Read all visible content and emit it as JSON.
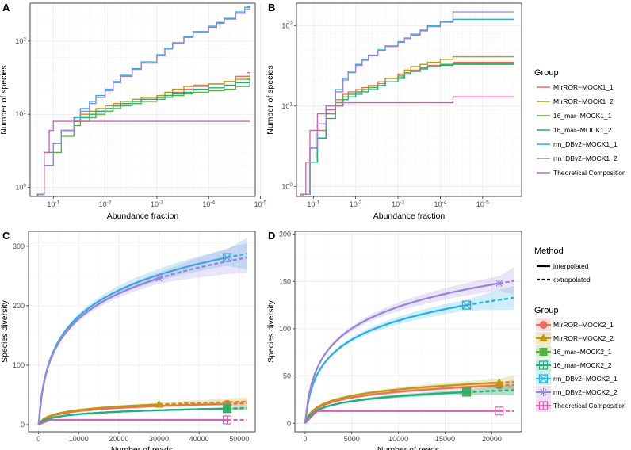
{
  "chart_data": [
    {
      "type": "line",
      "panel": "A",
      "xlabel": "Abundance fraction",
      "ylabel": "Number of species",
      "x_scale": "log10-reversed",
      "y_scale": "log10",
      "xlim": [
        0.28,
        1.26e-05
      ],
      "ylim": [
        0.75,
        330
      ],
      "x_ticks": [
        {
          "v": 0.1,
          "base": "10",
          "exp": "-1"
        },
        {
          "v": 0.01,
          "base": "10",
          "exp": "-2"
        },
        {
          "v": 0.001,
          "base": "10",
          "exp": "-3"
        },
        {
          "v": 0.0001,
          "base": "10",
          "exp": "-4"
        },
        {
          "v": 1e-05,
          "base": "10",
          "exp": "-5"
        }
      ],
      "y_ticks": [
        {
          "v": 1,
          "base": "10",
          "exp": "0"
        },
        {
          "v": 10,
          "base": "10",
          "exp": "1"
        },
        {
          "v": 100,
          "base": "10",
          "exp": "2"
        }
      ],
      "series": [
        {
          "name": "MIrROR−MOCK1_1",
          "x": [
            0.2,
            0.15,
            0.1,
            0.07,
            0.04,
            0.03,
            0.02,
            0.015,
            0.01,
            0.007,
            0.005,
            0.003,
            0.002,
            0.001,
            0.0007,
            0.0005,
            0.0003,
            0.0002,
            0.0001,
            5e-05,
            3e-05,
            1.6e-05
          ],
          "y": [
            0.8,
            2,
            4,
            6,
            8,
            9,
            10,
            11,
            12,
            13,
            14,
            15,
            16,
            17,
            18,
            20,
            22,
            24,
            26,
            28,
            33,
            37
          ]
        },
        {
          "name": "MIrROR−MOCK1_2",
          "x": [
            0.2,
            0.15,
            0.1,
            0.07,
            0.04,
            0.03,
            0.02,
            0.015,
            0.01,
            0.007,
            0.005,
            0.003,
            0.002,
            0.001,
            0.0007,
            0.0005,
            0.0003,
            0.0002,
            0.0001,
            5e-05,
            3e-05,
            1.6e-05
          ],
          "y": [
            0.8,
            2,
            4,
            6,
            8,
            10,
            11,
            12,
            13,
            14,
            15,
            16,
            17,
            18,
            20,
            22,
            24,
            25,
            26,
            28,
            30,
            33
          ]
        },
        {
          "name": "16_mar−MOCK1_1",
          "x": [
            0.2,
            0.15,
            0.1,
            0.07,
            0.04,
            0.03,
            0.02,
            0.015,
            0.01,
            0.007,
            0.005,
            0.003,
            0.002,
            0.001,
            0.0007,
            0.0005,
            0.0003,
            0.0002,
            0.0001,
            5e-05,
            3e-05,
            1.6e-05
          ],
          "y": [
            0.8,
            2,
            3,
            5,
            7,
            8,
            9,
            10,
            11,
            12,
            13,
            14,
            15,
            16,
            17,
            18,
            19,
            20,
            21,
            22,
            24,
            27
          ]
        },
        {
          "name": "16_mar−MOCK1_2",
          "x": [
            0.2,
            0.15,
            0.1,
            0.07,
            0.04,
            0.03,
            0.02,
            0.015,
            0.01,
            0.007,
            0.005,
            0.003,
            0.002,
            0.001,
            0.0007,
            0.0005,
            0.0003,
            0.0002,
            0.0001,
            5e-05,
            3e-05,
            1.6e-05
          ],
          "y": [
            0.8,
            3,
            4,
            6,
            8,
            9,
            10,
            11,
            12,
            13,
            14,
            15,
            16,
            17,
            18,
            19,
            20,
            22,
            23,
            25,
            27,
            30
          ]
        },
        {
          "name": "rrn_DBv2−MOCK1_1",
          "x": [
            0.2,
            0.15,
            0.1,
            0.07,
            0.04,
            0.03,
            0.02,
            0.015,
            0.01,
            0.007,
            0.005,
            0.003,
            0.002,
            0.001,
            0.0007,
            0.0005,
            0.0003,
            0.0002,
            0.0001,
            7e-05,
            5e-05,
            3e-05,
            2e-05,
            1.6e-05
          ],
          "y": [
            0.8,
            2,
            4,
            6,
            9,
            12,
            15,
            18,
            22,
            28,
            34,
            42,
            52,
            65,
            80,
            95,
            115,
            135,
            160,
            180,
            205,
            250,
            290,
            300
          ]
        },
        {
          "name": "rrn_DBv2−MOCK1_2",
          "x": [
            0.2,
            0.15,
            0.1,
            0.07,
            0.04,
            0.03,
            0.02,
            0.015,
            0.01,
            0.007,
            0.005,
            0.003,
            0.002,
            0.001,
            0.0007,
            0.0005,
            0.0003,
            0.0002,
            0.0001,
            7e-05,
            5e-05,
            3e-05,
            2e-05,
            1.6e-05
          ],
          "y": [
            0.8,
            2,
            4,
            6,
            8,
            11,
            14,
            17,
            21,
            27,
            33,
            41,
            50,
            63,
            78,
            93,
            112,
            130,
            155,
            175,
            200,
            240,
            270,
            275
          ]
        },
        {
          "name": "Theoretical Composition",
          "x": [
            0.2,
            0.15,
            0.12,
            0.1,
            1.6e-05
          ],
          "y": [
            0.8,
            3,
            6,
            8,
            8
          ]
        }
      ]
    },
    {
      "type": "line",
      "panel": "B",
      "xlabel": "Abundance fraction",
      "ylabel": "Number of species",
      "x_scale": "log10-reversed",
      "y_scale": "log10",
      "xlim": [
        0.25,
        1.2e-06
      ],
      "ylim": [
        0.75,
        190
      ],
      "x_ticks": [
        {
          "v": 0.1,
          "base": "10",
          "exp": "-1"
        },
        {
          "v": 0.01,
          "base": "10",
          "exp": "-2"
        },
        {
          "v": 0.001,
          "base": "10",
          "exp": "-3"
        },
        {
          "v": 0.0001,
          "base": "10",
          "exp": "-4"
        },
        {
          "v": 1e-05,
          "base": "10",
          "exp": "-5"
        }
      ],
      "y_ticks": [
        {
          "v": 1,
          "base": "10",
          "exp": "0"
        },
        {
          "v": 10,
          "base": "10",
          "exp": "1"
        },
        {
          "v": 100,
          "base": "10",
          "exp": "2"
        }
      ],
      "series": [
        {
          "name": "MIrROR−MOCK2_1",
          "x": [
            0.18,
            0.12,
            0.08,
            0.05,
            0.03,
            0.02,
            0.015,
            0.01,
            0.007,
            0.005,
            0.003,
            0.002,
            0.001,
            0.0007,
            0.0005,
            0.0003,
            0.0002,
            0.0001,
            5e-05,
            2e-06
          ],
          "y": [
            0.8,
            2,
            5,
            9,
            12,
            14,
            15,
            16,
            17,
            18,
            20,
            22,
            24,
            26,
            28,
            30,
            32,
            33,
            35,
            35
          ]
        },
        {
          "name": "MIrROR−MOCK2_2",
          "x": [
            0.18,
            0.12,
            0.08,
            0.05,
            0.03,
            0.02,
            0.015,
            0.01,
            0.007,
            0.005,
            0.003,
            0.002,
            0.001,
            0.0007,
            0.0005,
            0.0003,
            0.0002,
            0.0001,
            5e-05,
            2e-06
          ],
          "y": [
            0.8,
            2,
            4,
            8,
            11,
            13,
            14,
            15,
            16,
            17,
            19,
            22,
            25,
            28,
            31,
            33,
            35,
            38,
            41,
            41
          ]
        },
        {
          "name": "16_mar−MOCK2_1",
          "x": [
            0.18,
            0.12,
            0.08,
            0.05,
            0.03,
            0.02,
            0.015,
            0.01,
            0.007,
            0.005,
            0.003,
            0.002,
            0.001,
            0.0007,
            0.0005,
            0.0003,
            0.0002,
            0.0001,
            5e-05,
            2e-06
          ],
          "y": [
            0.8,
            2,
            4,
            8,
            11,
            13,
            14,
            15,
            16,
            17,
            18,
            20,
            23,
            25,
            27,
            29,
            31,
            33,
            34,
            34
          ]
        },
        {
          "name": "16_mar−MOCK2_2",
          "x": [
            0.18,
            0.12,
            0.08,
            0.05,
            0.03,
            0.02,
            0.015,
            0.01,
            0.007,
            0.005,
            0.003,
            0.002,
            0.001,
            0.0007,
            0.0005,
            0.0003,
            0.0002,
            0.0001,
            5e-05,
            2e-06
          ],
          "y": [
            0.8,
            2,
            4,
            7,
            10,
            12,
            13,
            14,
            15,
            16,
            18,
            20,
            22,
            25,
            27,
            29,
            31,
            32,
            33,
            33
          ]
        },
        {
          "name": "rrn_DBv2−MOCK2_1",
          "x": [
            0.18,
            0.12,
            0.08,
            0.05,
            0.03,
            0.02,
            0.015,
            0.01,
            0.007,
            0.005,
            0.003,
            0.002,
            0.001,
            0.0007,
            0.0005,
            0.0003,
            0.0002,
            0.0001,
            5e-05,
            2e-06
          ],
          "y": [
            0.8,
            3,
            6,
            10,
            16,
            22,
            27,
            33,
            38,
            43,
            50,
            56,
            63,
            70,
            78,
            88,
            100,
            112,
            120,
            120
          ]
        },
        {
          "name": "rrn_DBv2−MOCK2_2",
          "x": [
            0.18,
            0.12,
            0.08,
            0.05,
            0.03,
            0.02,
            0.015,
            0.01,
            0.007,
            0.005,
            0.003,
            0.002,
            0.001,
            0.0007,
            0.0005,
            0.0003,
            0.0002,
            0.0001,
            5e-05,
            2e-06
          ],
          "y": [
            0.8,
            3,
            6,
            10,
            15,
            21,
            26,
            32,
            37,
            42,
            49,
            55,
            62,
            69,
            76,
            86,
            97,
            110,
            148,
            148
          ]
        },
        {
          "name": "Theoretical Composition",
          "x": [
            0.2,
            0.15,
            0.12,
            0.08,
            0.05,
            0.03,
            0.02,
            0.01,
            0.0001,
            5e-05,
            2e-06
          ],
          "y": [
            0.8,
            2,
            5,
            8,
            9,
            10,
            11,
            11,
            11,
            13,
            13
          ]
        }
      ]
    },
    {
      "type": "line",
      "panel": "C",
      "xlabel": "Number of reads",
      "ylabel": "Species diversity",
      "xlim": [
        -2500,
        54000
      ],
      "ylim": [
        -12,
        325
      ],
      "x_ticks": [
        0,
        10000,
        20000,
        30000,
        40000,
        50000
      ],
      "y_ticks": [
        0,
        100,
        200,
        300
      ],
      "series": [
        {
          "name": "MIrROR−MOCK2_1",
          "x_obs": 47000,
          "y_obs": 35,
          "k": 23,
          "ci": 3
        },
        {
          "name": "MIrROR−MOCK2_2",
          "x_obs": 30000,
          "y_obs": 34,
          "k": 23,
          "ci": 4
        },
        {
          "name": "16_mar−MOCK2_1",
          "x_obs": 47000,
          "y_obs": 27,
          "k": 19,
          "ci": 2
        },
        {
          "name": "16_mar−MOCK2_2",
          "x_obs": 47000,
          "y_obs": 27,
          "k": 19,
          "ci": 2
        },
        {
          "name": "rrn_DBv2−MOCK2_1",
          "x_obs": 47000,
          "y_obs": 281,
          "k": 115,
          "ci": 15
        },
        {
          "name": "rrn_DBv2−MOCK2_2",
          "x_obs": 30000,
          "y_obs": 246,
          "k": 113,
          "ci": 14
        },
        {
          "name": "Theoretical Composition",
          "x_obs": 47000,
          "y_obs": 8,
          "k": 8,
          "ci": 0
        }
      ]
    },
    {
      "type": "line",
      "panel": "D",
      "xlabel": "Number of reads",
      "ylabel": "Species diversity",
      "xlim": [
        -1100,
        23200
      ],
      "ylim": [
        -9,
        203
      ],
      "x_ticks": [
        0,
        5000,
        10000,
        15000,
        20000
      ],
      "y_ticks": [
        0,
        50,
        100,
        150,
        200
      ],
      "series": [
        {
          "name": "MIrROR−MOCK2_1",
          "x_obs": 20800,
          "y_obs": 40,
          "k": 22,
          "ci": 3
        },
        {
          "name": "MIrROR−MOCK2_2",
          "x_obs": 20800,
          "y_obs": 43,
          "k": 23,
          "ci": 4
        },
        {
          "name": "16_mar−MOCK2_1",
          "x_obs": 17300,
          "y_obs": 33,
          "k": 21,
          "ci": 3
        },
        {
          "name": "16_mar−MOCK2_2",
          "x_obs": 17300,
          "y_obs": 33,
          "k": 21,
          "ci": 3
        },
        {
          "name": "rrn_DBv2−MOCK2_1",
          "x_obs": 17300,
          "y_obs": 125,
          "k": 68,
          "ci": 7
        },
        {
          "name": "rrn_DBv2−MOCK2_2",
          "x_obs": 20800,
          "y_obs": 148,
          "k": 70,
          "ci": 8
        },
        {
          "name": "Theoretical Composition",
          "x_obs": 20800,
          "y_obs": 13,
          "k": 10,
          "ci": 0
        }
      ]
    }
  ],
  "legends": {
    "top": {
      "title": "Group",
      "items": [
        "MIrROR−MOCK1_1",
        "MIrROR−MOCK1_2",
        "16_mar−MOCK1_1",
        "16_mar−MOCK1_2",
        "rrn_DBv2−MOCK1_1",
        "rrn_DBv2−MOCK1_2",
        "Theoretical Composition"
      ]
    },
    "method": {
      "title": "Method",
      "items": [
        "interpolated",
        "extrapolated"
      ]
    },
    "bottom": {
      "title": "Group",
      "items": [
        "MIrROR−MOCK2_1",
        "MIrROR−MOCK2_2",
        "16_mar−MOCK2_1",
        "16_mar−MOCK2_2",
        "rrn_DBv2−MOCK2_1",
        "rrn_DBv2−MOCK2_2",
        "Theoretical Composition"
      ]
    }
  },
  "panel_labels": [
    "A",
    "B",
    "C",
    "D"
  ],
  "colors": [
    "#F8766D",
    "#C49A00",
    "#53B400",
    "#00C094",
    "#00B6EB",
    "#A58AFF",
    "#FB61D7"
  ],
  "display_colors": [
    "#ef6c63",
    "#c0970d",
    "#55b23a",
    "#21ae82",
    "#27b0e3",
    "#9a84d9",
    "#d85fb5"
  ],
  "markers": [
    "circle",
    "triangle",
    "square",
    "square-plus",
    "square-x",
    "asterisk",
    "square-plus"
  ]
}
